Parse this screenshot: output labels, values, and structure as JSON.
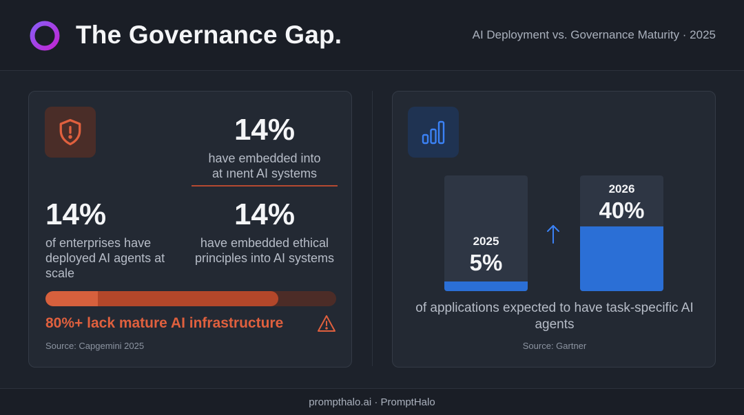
{
  "header": {
    "title": "The Governance Gap.",
    "subtitle": "AI Deployment vs. Governance Maturity · 2025",
    "logo_icon": "ring-logo-icon"
  },
  "left_card": {
    "icon": "shield-alert-icon",
    "stat_top": {
      "value": "14%",
      "description": "have embedded into\nat ınent AI systems"
    },
    "stat_left": {
      "value": "14%",
      "description": "of enterprises have deployed AI agents at scale"
    },
    "stat_right": {
      "value": "14%",
      "description": "have embedded ethical principles into AI systems"
    },
    "progress": {
      "fraction": 0.8,
      "label": "80%+ lack mature AI infrastructure",
      "icon": "warning-triangle-icon"
    },
    "source": "Source: Capgemini 2025",
    "accent_color": "#e0603e"
  },
  "right_card": {
    "icon": "bar-chart-icon",
    "columns": [
      {
        "year": "2025",
        "value": "5%",
        "fraction": 0.05
      },
      {
        "year": "2026",
        "value": "40%",
        "fraction": 0.4
      }
    ],
    "arrow_icon": "arrow-up-icon",
    "description": "of applications expected to have task-specific AI agents",
    "source": "Source: Gartner",
    "accent_color": "#2b6fd6"
  },
  "footer": {
    "text": "prompthalo.ai · PromptHalo"
  }
}
